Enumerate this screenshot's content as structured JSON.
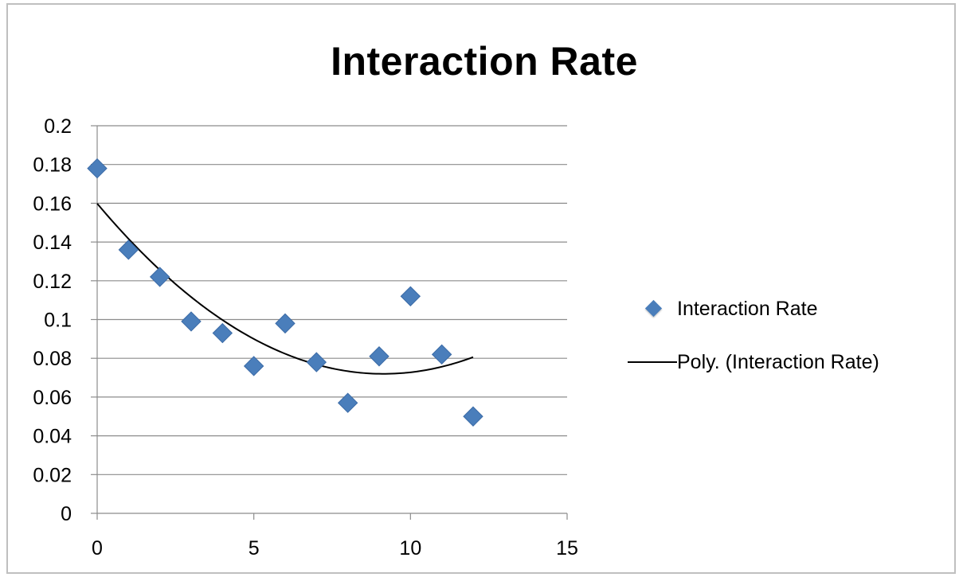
{
  "chart_data": {
    "type": "scatter",
    "title": "Interaction Rate",
    "xlabel": "",
    "ylabel": "",
    "xlim": [
      0,
      15
    ],
    "ylim": [
      0,
      0.2
    ],
    "x_ticks": [
      "0",
      "5",
      "10",
      "15"
    ],
    "y_ticks": [
      "0",
      "0.02",
      "0.04",
      "0.06",
      "0.08",
      "0.1",
      "0.12",
      "0.14",
      "0.16",
      "0.18",
      "0.2"
    ],
    "grid": "horizontal",
    "legend_position": "right",
    "series": [
      {
        "name": "Interaction Rate",
        "kind": "scatter",
        "marker": "diamond",
        "color": "#4a7ebb",
        "x": [
          0,
          1,
          2,
          3,
          4,
          5,
          6,
          7,
          8,
          9,
          10,
          11,
          12
        ],
        "y": [
          0.178,
          0.136,
          0.122,
          0.099,
          0.093,
          0.076,
          0.098,
          0.078,
          0.057,
          0.081,
          0.112,
          0.082,
          0.05
        ]
      },
      {
        "name": "Poly. (Interaction Rate)",
        "kind": "trendline",
        "fit": "polynomial",
        "order": 2,
        "color": "#000000",
        "x_range": [
          0,
          12
        ]
      }
    ]
  },
  "legend": {
    "items": [
      {
        "label": "Interaction Rate"
      },
      {
        "label": "Poly. (Interaction Rate)"
      }
    ]
  }
}
